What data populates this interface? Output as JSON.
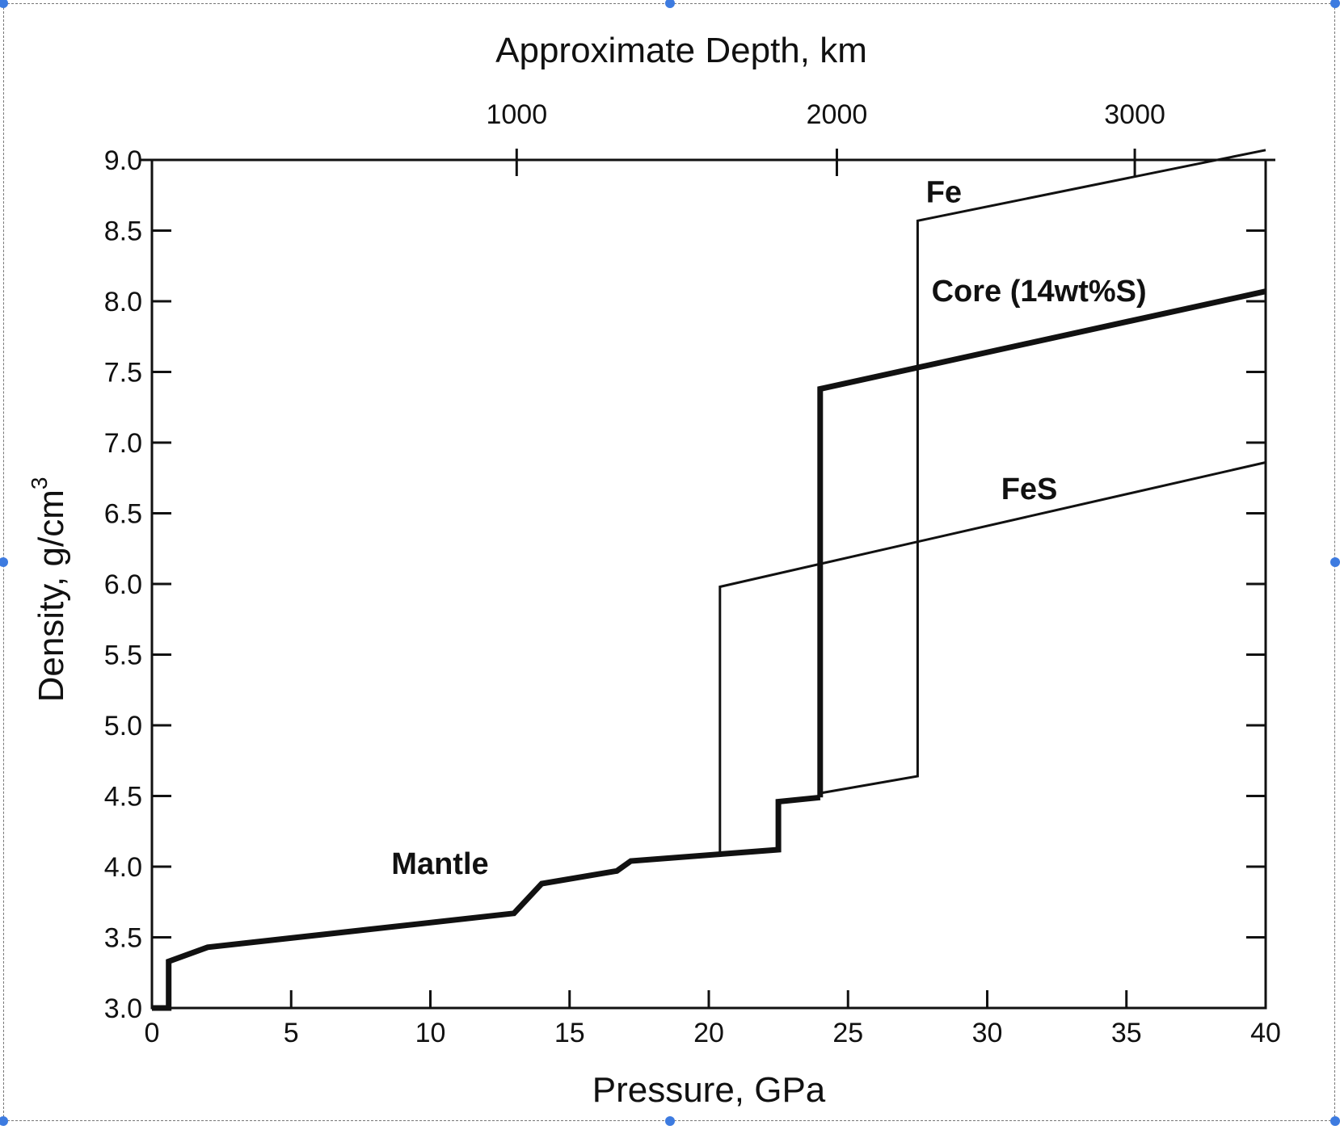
{
  "chart_data": {
    "type": "line",
    "xlabel": "Pressure, GPa",
    "ylabel": "Density, g/cm",
    "ylabel_sup": "3",
    "top_axis_label": "Approximate Depth, km",
    "xlim": [
      0,
      40
    ],
    "ylim": [
      3.0,
      9.0
    ],
    "x_ticks": [
      "0",
      "5",
      "10",
      "15",
      "20",
      "25",
      "30",
      "35",
      "40"
    ],
    "y_ticks": [
      "3.0",
      "3.5",
      "4.0",
      "4.5",
      "5.0",
      "5.5",
      "6.0",
      "6.5",
      "7.0",
      "7.5",
      "8.0",
      "8.5",
      "9.0"
    ],
    "top_ticks": [
      {
        "label": "1000",
        "pressure": 13.1
      },
      {
        "label": "2000",
        "pressure": 24.6
      },
      {
        "label": "3000",
        "pressure": 35.3
      }
    ],
    "grid": false,
    "series": [
      {
        "name": "Mantle",
        "weight": "thick",
        "x": [
          0,
          0.6,
          0.6,
          2.0,
          13.0,
          14.0,
          16.7,
          17.2,
          20.5,
          22.5,
          22.5,
          24.0
        ],
        "y": [
          3.0,
          3.0,
          3.33,
          3.43,
          3.67,
          3.88,
          3.97,
          4.04,
          4.09,
          4.12,
          4.46,
          4.49
        ]
      },
      {
        "name": "Core (14wt%S)",
        "weight": "thick",
        "x": [
          24.0,
          24.0,
          40.0
        ],
        "y": [
          4.49,
          7.38,
          8.07
        ]
      },
      {
        "name": "Fe",
        "weight": "thin",
        "x": [
          24.0,
          27.5,
          27.5,
          40.0
        ],
        "y": [
          4.52,
          4.64,
          8.57,
          9.07
        ]
      },
      {
        "name": "FeS",
        "weight": "thin",
        "x": [
          20.4,
          20.4,
          40.0
        ],
        "y": [
          4.09,
          5.98,
          6.86
        ]
      }
    ],
    "annotations": [
      {
        "text": "Fe",
        "x": 27.8,
        "y": 8.7
      },
      {
        "text": "Core (14wt%S)",
        "x": 28.0,
        "y": 8.0
      },
      {
        "text": "FeS",
        "x": 30.5,
        "y": 6.6
      },
      {
        "text": "Mantle",
        "x": 8.6,
        "y": 3.95
      }
    ],
    "colors": {
      "line": "#111111",
      "background": "#ffffff",
      "frame": "#777777",
      "handle": "#3d7be0"
    }
  }
}
